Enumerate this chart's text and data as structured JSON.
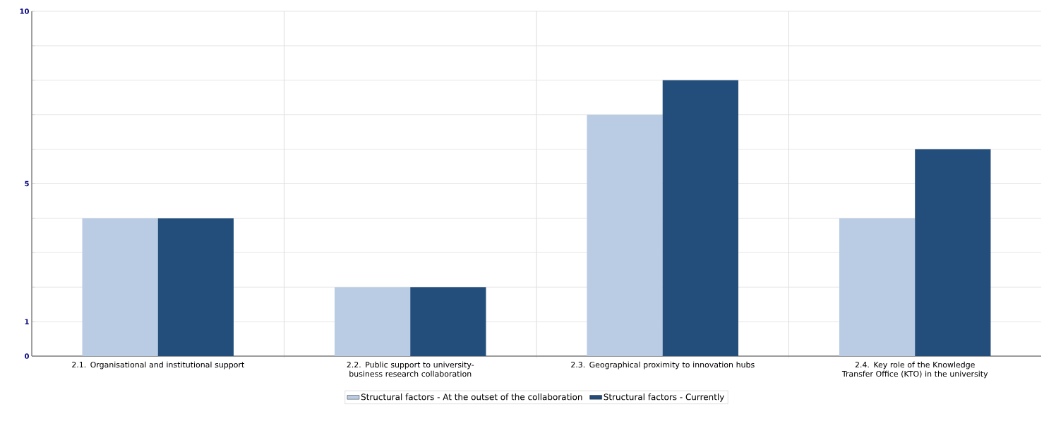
{
  "chart_data": {
    "type": "bar",
    "categories": [
      "2.1. Organisational and institutional support",
      "2.2. Public support to university-business research collaboration",
      "2.3. Geographical proximity to innovation hubs",
      "2.4. Key role of the Knowledge Transfer Office (KTO) in the university"
    ],
    "series": [
      {
        "name": "Structural factors - At the outset of the collaboration",
        "color": "#b9cce4",
        "values": [
          4,
          2,
          7,
          4
        ]
      },
      {
        "name": "Structural factors - Currently",
        "color": "#234d7a",
        "values": [
          4,
          2,
          8,
          6
        ]
      }
    ],
    "ylim": [
      0,
      10
    ],
    "yticks": [
      0,
      1,
      {
        "value": 2,
        "label": null
      },
      {
        "value": 3,
        "label": null
      },
      {
        "value": 4,
        "label": null
      },
      5,
      {
        "value": 6,
        "label": null
      },
      {
        "value": 7,
        "label": null
      },
      {
        "value": 8,
        "label": null
      },
      {
        "value": 9,
        "label": null
      },
      10
    ],
    "grid": true,
    "legend": "bottom"
  }
}
